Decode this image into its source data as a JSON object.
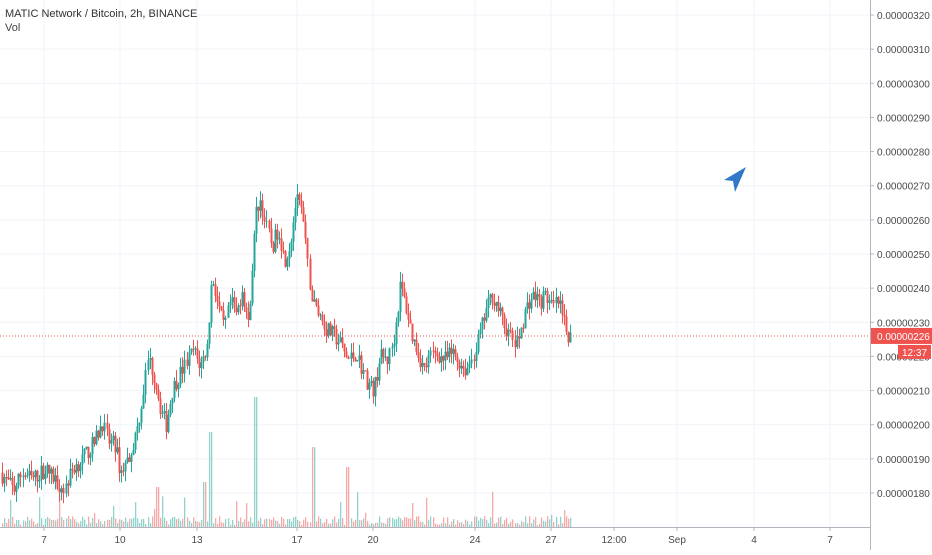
{
  "header": {
    "symbol_line": "MATIC Network / Bitcoin, 2h, BINANCE",
    "vol_label": "Vol"
  },
  "price_axis": {
    "ticks": [
      "0.00000320",
      "0.00000310",
      "0.00000300",
      "0.00000290",
      "0.00000280",
      "0.00000270",
      "0.00000260",
      "0.00000250",
      "0.00000240",
      "0.00000230",
      "0.00000220",
      "0.00000210",
      "0.00000200",
      "0.00000190",
      "0.00000180"
    ],
    "current_price_label": "0.00000226",
    "countdown_label": "12:37",
    "current_price": 2.26e-06
  },
  "time_axis": {
    "labels": [
      "7",
      "10",
      "13",
      "17",
      "20",
      "24",
      "27",
      "12:00",
      "Sep",
      "4",
      "7"
    ]
  },
  "colors": {
    "up": "#26a69a",
    "down": "#ef5350",
    "price_line": "#ef5350",
    "arrow": "#3179c6"
  },
  "annotation": {
    "icon": "cursor-arrow-icon"
  },
  "chart_data": {
    "type": "candlestick",
    "title": "MATIC Network / Bitcoin, 2h, BINANCE",
    "interval": "2h",
    "y_unit": "BTC",
    "ylim": [
      1.72e-06,
      3.25e-06
    ],
    "x_ticks": [
      "7",
      "10",
      "13",
      "17",
      "20",
      "24",
      "27",
      "12:00",
      "Sep",
      "4",
      "7"
    ],
    "grid": true,
    "current_price": 2.26e-06,
    "key_points": [
      {
        "x_label": "7",
        "price": 1.86e-06
      },
      {
        "x_label": "10",
        "price": 1.95e-06
      },
      {
        "x_label": "13",
        "price": 2.2e-06
      },
      {
        "x_label": "15 high",
        "price": 2.73e-06
      },
      {
        "x_label": "17 high",
        "price": 2.7e-06
      },
      {
        "x_label": "20 low",
        "price": 2.07e-06
      },
      {
        "x_label": "21 high",
        "price": 2.44e-06
      },
      {
        "x_label": "24 high",
        "price": 2.41e-06
      },
      {
        "x_label": "27",
        "price": 2.4e-06
      },
      {
        "x_label": "last",
        "price": 2.26e-06
      }
    ],
    "series": [
      {
        "name": "Vol",
        "type": "volume"
      }
    ]
  }
}
